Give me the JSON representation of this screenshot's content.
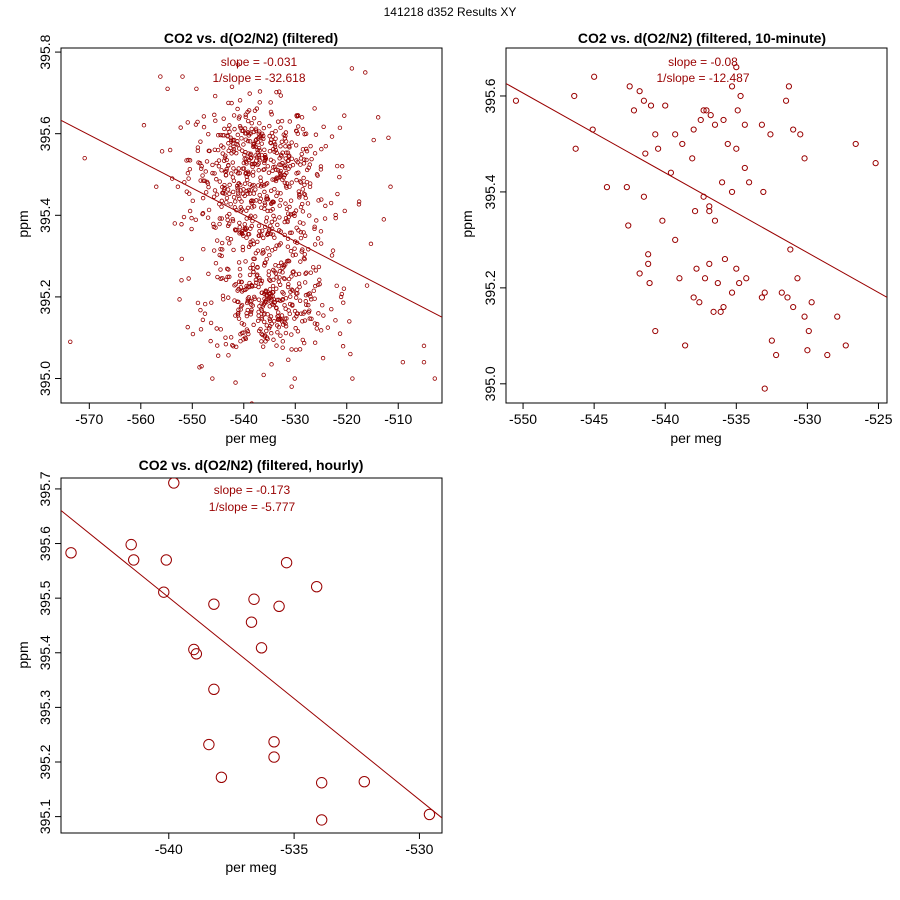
{
  "page_title": "141218   d352   Results XY",
  "colors": {
    "series": "#990000",
    "axis": "#000000",
    "background": "#ffffff"
  },
  "chart_data": [
    {
      "type": "scatter",
      "title": "CO2 vs. d(O2/N2) (filtered)",
      "xlabel": "per meg",
      "ylabel": "ppm",
      "xlim": [
        -575.5,
        -501.5
      ],
      "ylim": [
        394.94,
        395.81
      ],
      "xticks": [
        -570,
        -560,
        -550,
        -540,
        -530,
        -520,
        -510
      ],
      "yticks": [
        395.0,
        395.2,
        395.4,
        395.6,
        395.8
      ],
      "ytick_labels": [
        "395.0",
        "395.2",
        "395.4",
        "395.6",
        "395.8"
      ],
      "fit_line": {
        "x": [
          -575.5,
          -501.5
        ],
        "y": [
          395.6327,
          395.1503
        ]
      },
      "annotations": [
        "slope = -0.031",
        "1/slope = -32.618"
      ],
      "point_style": "small",
      "point_count_note": "approx. 1000 minute-resolution points",
      "points": [
        [
          -570.9,
          395.54
        ],
        [
          -573.7,
          395.09
        ],
        [
          -556.2,
          395.74
        ],
        [
          -554.8,
          395.71
        ],
        [
          -551.9,
          395.74
        ],
        [
          -549.2,
          395.71
        ],
        [
          -519.0,
          395.76
        ],
        [
          -516.4,
          395.75
        ],
        [
          -513.9,
          395.64
        ],
        [
          -511.9,
          395.59
        ],
        [
          -511.5,
          395.47
        ],
        [
          -515.3,
          395.33
        ],
        [
          -512.8,
          395.39
        ],
        [
          -518.9,
          395.0
        ],
        [
          -509.1,
          395.04
        ],
        [
          -505.0,
          395.08
        ],
        [
          -502.9,
          395.0
        ],
        [
          -505.0,
          395.04
        ],
        [
          -519.3,
          395.06
        ],
        [
          -548.2,
          395.03
        ],
        [
          -546.1,
          395.0
        ],
        [
          -541.6,
          394.99
        ],
        [
          -530.7,
          394.98
        ],
        [
          -530.1,
          395.0
        ],
        [
          -524.6,
          395.05
        ],
        [
          -521.3,
          395.11
        ],
        [
          -523.0,
          395.17
        ],
        [
          -553.4,
          395.38
        ],
        [
          -552.8,
          395.47
        ],
        [
          -557.0,
          395.47
        ],
        [
          -521.1,
          395.2
        ],
        [
          -519.5,
          395.14
        ],
        [
          -553.9,
          395.49
        ],
        [
          -554.3,
          395.56
        ]
      ],
      "clusters": [
        {
          "cx": -538.5,
          "cy": 395.54,
          "sx": 6.0,
          "sy": 0.07,
          "n": 380
        },
        {
          "cx": -535.0,
          "cy": 395.18,
          "sx": 6.0,
          "sy": 0.06,
          "n": 340
        },
        {
          "cx": -537.5,
          "cy": 395.37,
          "sx": 6.5,
          "sy": 0.06,
          "n": 200
        },
        {
          "cx": -530.5,
          "cy": 395.5,
          "sx": 6.0,
          "sy": 0.07,
          "n": 80
        }
      ]
    },
    {
      "type": "scatter",
      "title": "CO2 vs. d(O2/N2) (filtered, 10-minute)",
      "xlabel": "per meg",
      "ylabel": "ppm",
      "xlim": [
        -551.2,
        -524.4
      ],
      "ylim": [
        394.96,
        395.7
      ],
      "xticks": [
        -550,
        -545,
        -540,
        -535,
        -530,
        -525
      ],
      "yticks": [
        395.0,
        395.2,
        395.4,
        395.6
      ],
      "ytick_labels": [
        "395.0",
        "395.2",
        "395.4",
        "395.6"
      ],
      "fit_line": {
        "x": [
          -551.2,
          -524.4
        ],
        "y": [
          395.626,
          395.1804
        ]
      },
      "annotations": [
        "slope = -0.08",
        "1/slope = -12.487"
      ],
      "point_style": "medium",
      "points": [
        [
          -550.5,
          395.59
        ],
        [
          -546.4,
          395.6
        ],
        [
          -546.3,
          395.49
        ],
        [
          -545.0,
          395.64
        ],
        [
          -545.1,
          395.53
        ],
        [
          -543.1,
          395.73
        ],
        [
          -542.5,
          395.62
        ],
        [
          -542.2,
          395.57
        ],
        [
          -541.8,
          395.61
        ],
        [
          -541.5,
          395.59
        ],
        [
          -541.0,
          395.58
        ],
        [
          -540.7,
          395.52
        ],
        [
          -541.4,
          395.48
        ],
        [
          -540.5,
          395.49
        ],
        [
          -540.0,
          395.58
        ],
        [
          -539.3,
          395.52
        ],
        [
          -538.8,
          395.5
        ],
        [
          -538.1,
          395.47
        ],
        [
          -538.0,
          395.53
        ],
        [
          -537.5,
          395.55
        ],
        [
          -537.3,
          395.57
        ],
        [
          -536.8,
          395.56
        ],
        [
          -536.5,
          395.54
        ],
        [
          -535.9,
          395.55
        ],
        [
          -535.3,
          395.62
        ],
        [
          -535.0,
          395.66
        ],
        [
          -534.7,
          395.6
        ],
        [
          -534.4,
          395.54
        ],
        [
          -535.0,
          395.49
        ],
        [
          -534.4,
          395.45
        ],
        [
          -533.2,
          395.54
        ],
        [
          -532.6,
          395.52
        ],
        [
          -531.5,
          395.59
        ],
        [
          -531.3,
          395.62
        ],
        [
          -531.0,
          395.53
        ],
        [
          -530.5,
          395.52
        ],
        [
          -530.2,
          395.47
        ],
        [
          -526.6,
          395.5
        ],
        [
          -525.2,
          395.46
        ],
        [
          -544.1,
          395.41
        ],
        [
          -542.7,
          395.41
        ],
        [
          -542.6,
          395.33
        ],
        [
          -541.5,
          395.39
        ],
        [
          -540.2,
          395.34
        ],
        [
          -539.3,
          395.3
        ],
        [
          -537.9,
          395.36
        ],
        [
          -537.3,
          395.39
        ],
        [
          -536.9,
          395.36
        ],
        [
          -536.5,
          395.34
        ],
        [
          -536.0,
          395.42
        ],
        [
          -535.3,
          395.4
        ],
        [
          -534.1,
          395.42
        ],
        [
          -533.1,
          395.4
        ],
        [
          -531.2,
          395.28
        ],
        [
          -541.8,
          395.23
        ],
        [
          -541.2,
          395.25
        ],
        [
          -541.1,
          395.21
        ],
        [
          -541.2,
          395.27
        ],
        [
          -540.7,
          395.11
        ],
        [
          -539.0,
          395.22
        ],
        [
          -538.6,
          395.08
        ],
        [
          -538.0,
          395.18
        ],
        [
          -537.8,
          395.24
        ],
        [
          -537.6,
          395.17
        ],
        [
          -537.2,
          395.22
        ],
        [
          -536.6,
          395.15
        ],
        [
          -536.3,
          395.21
        ],
        [
          -536.1,
          395.15
        ],
        [
          -535.8,
          395.26
        ],
        [
          -535.3,
          395.19
        ],
        [
          -535.0,
          395.24
        ],
        [
          -534.8,
          395.21
        ],
        [
          -534.3,
          395.22
        ],
        [
          -533.2,
          395.18
        ],
        [
          -533.0,
          395.19
        ],
        [
          -532.5,
          395.09
        ],
        [
          -532.2,
          395.06
        ],
        [
          -531.8,
          395.19
        ],
        [
          -531.4,
          395.18
        ],
        [
          -531.0,
          395.16
        ],
        [
          -530.7,
          395.22
        ],
        [
          -530.2,
          395.14
        ],
        [
          -530.0,
          395.07
        ],
        [
          -529.9,
          395.11
        ],
        [
          -529.7,
          395.17
        ],
        [
          -528.6,
          395.06
        ],
        [
          -527.9,
          395.14
        ],
        [
          -527.3,
          395.08
        ],
        [
          -533.0,
          394.99
        ],
        [
          -536.9,
          395.37
        ],
        [
          -537.1,
          395.57
        ],
        [
          -539.6,
          395.44
        ],
        [
          -535.6,
          395.5
        ],
        [
          -534.9,
          395.57
        ],
        [
          -536.9,
          395.25
        ],
        [
          -535.9,
          395.16
        ]
      ]
    },
    {
      "type": "scatter",
      "title": "CO2 vs. d(O2/N2) (filtered, hourly)",
      "xlabel": "per meg",
      "ylabel": "ppm",
      "xlim": [
        -544.3,
        -529.1
      ],
      "ylim": [
        395.07,
        395.72
      ],
      "xticks": [
        -540,
        -535,
        -530
      ],
      "yticks": [
        395.1,
        395.2,
        395.3,
        395.4,
        395.5,
        395.6,
        395.7
      ],
      "ytick_labels": [
        "395.1",
        "395.2",
        "395.3",
        "395.4",
        "395.5",
        "395.6",
        "395.7"
      ],
      "fit_line": {
        "x": [
          -544.3,
          -529.1
        ],
        "y": [
          395.6605,
          395.0976
        ]
      },
      "annotations": [
        "slope = -0.173",
        "1/slope = -5.777"
      ],
      "point_style": "large",
      "points": [
        [
          -543.9,
          395.583
        ],
        [
          -541.5,
          395.598
        ],
        [
          -541.4,
          395.57
        ],
        [
          -540.1,
          395.57
        ],
        [
          -539.8,
          395.711
        ],
        [
          -540.2,
          395.511
        ],
        [
          -538.2,
          395.489
        ],
        [
          -539.0,
          395.406
        ],
        [
          -538.9,
          395.398
        ],
        [
          -538.2,
          395.333
        ],
        [
          -538.4,
          395.232
        ],
        [
          -537.9,
          395.172
        ],
        [
          -536.7,
          395.456
        ],
        [
          -536.6,
          395.498
        ],
        [
          -536.3,
          395.409
        ],
        [
          -535.8,
          395.237
        ],
        [
          -535.8,
          395.209
        ],
        [
          -535.6,
          395.485
        ],
        [
          -535.3,
          395.565
        ],
        [
          -534.1,
          395.521
        ],
        [
          -533.9,
          395.162
        ],
        [
          -533.9,
          395.094
        ],
        [
          -532.2,
          395.164
        ],
        [
          -529.6,
          395.104
        ]
      ]
    }
  ]
}
